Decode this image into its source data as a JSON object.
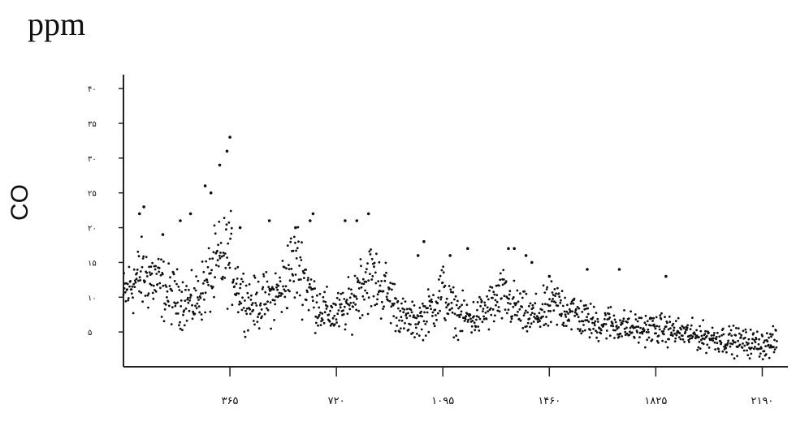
{
  "chart_data": {
    "type": "scatter",
    "title": "",
    "unit_label": "ppm",
    "ylabel": "CO",
    "xlabel": "",
    "x_ticks": [
      "۳۶۵",
      "۷۲۰",
      "۱۰۹۵",
      "۱۴۶۰",
      "۱۸۲۵",
      "۲۱۹۰"
    ],
    "x_tick_values": [
      365,
      730,
      1095,
      1460,
      1825,
      2190
    ],
    "y_ticks": [
      "۴۰",
      "۳۵",
      "۳۰",
      "۲۵",
      "۲۰",
      "۱۵",
      "۱۰",
      "۵"
    ],
    "y_tick_values": [
      40,
      35,
      30,
      25,
      20,
      15,
      10,
      5
    ],
    "xlim": [
      0,
      2250
    ],
    "ylim": [
      0,
      42
    ],
    "grid": false,
    "series": [
      {
        "trend_points": [
          [
            0,
            10
          ],
          [
            30,
            12
          ],
          [
            60,
            13
          ],
          [
            90,
            13
          ],
          [
            120,
            12
          ],
          [
            150,
            10.5
          ],
          [
            180,
            10
          ],
          [
            210,
            9.5
          ],
          [
            240,
            9
          ],
          [
            270,
            11
          ],
          [
            300,
            13
          ],
          [
            330,
            15
          ],
          [
            365,
            16
          ],
          [
            390,
            12
          ],
          [
            420,
            9.5
          ],
          [
            450,
            9
          ],
          [
            480,
            9.5
          ],
          [
            510,
            10
          ],
          [
            540,
            11
          ],
          [
            570,
            14
          ],
          [
            600,
            15
          ],
          [
            630,
            12
          ],
          [
            660,
            9
          ],
          [
            690,
            8
          ],
          [
            720,
            7.5
          ],
          [
            750,
            8
          ],
          [
            780,
            9
          ],
          [
            810,
            12
          ],
          [
            840,
            13
          ],
          [
            870,
            12
          ],
          [
            900,
            11
          ],
          [
            930,
            9
          ],
          [
            960,
            7
          ],
          [
            990,
            6.5
          ],
          [
            1020,
            7
          ],
          [
            1050,
            8
          ],
          [
            1080,
            10
          ],
          [
            1095,
            11
          ],
          [
            1120,
            8.5
          ],
          [
            1150,
            7.5
          ],
          [
            1180,
            7
          ],
          [
            1210,
            7
          ],
          [
            1240,
            8
          ],
          [
            1270,
            9
          ],
          [
            1300,
            10
          ],
          [
            1330,
            9
          ],
          [
            1360,
            8
          ],
          [
            1390,
            7
          ],
          [
            1420,
            7.5
          ],
          [
            1450,
            8
          ],
          [
            1480,
            9
          ],
          [
            1510,
            8.5
          ],
          [
            1540,
            8
          ],
          [
            1570,
            7
          ],
          [
            1600,
            6.5
          ],
          [
            1630,
            6
          ],
          [
            1660,
            6.5
          ],
          [
            1690,
            6
          ],
          [
            1720,
            5.8
          ],
          [
            1750,
            5.5
          ],
          [
            1780,
            5.5
          ],
          [
            1810,
            5.5
          ],
          [
            1840,
            5.4
          ],
          [
            1870,
            5.2
          ],
          [
            1900,
            5
          ],
          [
            1930,
            4.7
          ],
          [
            1960,
            4.5
          ],
          [
            1990,
            4.3
          ],
          [
            2020,
            4.2
          ],
          [
            2050,
            4
          ],
          [
            2080,
            3.8
          ],
          [
            2110,
            3.6
          ],
          [
            2140,
            3.4
          ],
          [
            2170,
            3.3
          ],
          [
            2200,
            3.2
          ],
          [
            2240,
            3.5
          ]
        ],
        "outliers": [
          [
            55,
            22
          ],
          [
            70,
            23
          ],
          [
            135,
            19
          ],
          [
            195,
            21
          ],
          [
            230,
            22
          ],
          [
            280,
            26
          ],
          [
            300,
            25
          ],
          [
            330,
            29
          ],
          [
            355,
            31
          ],
          [
            365,
            33
          ],
          [
            400,
            20
          ],
          [
            500,
            21
          ],
          [
            590,
            20
          ],
          [
            640,
            21
          ],
          [
            650,
            22
          ],
          [
            760,
            21
          ],
          [
            800,
            21
          ],
          [
            840,
            22
          ],
          [
            1010,
            16
          ],
          [
            1030,
            18
          ],
          [
            1120,
            16
          ],
          [
            1180,
            17
          ],
          [
            1320,
            17
          ],
          [
            1340,
            17
          ],
          [
            1380,
            16
          ],
          [
            1400,
            15
          ],
          [
            1460,
            13
          ],
          [
            1590,
            14
          ],
          [
            1700,
            14
          ],
          [
            1860,
            13
          ]
        ]
      }
    ]
  }
}
